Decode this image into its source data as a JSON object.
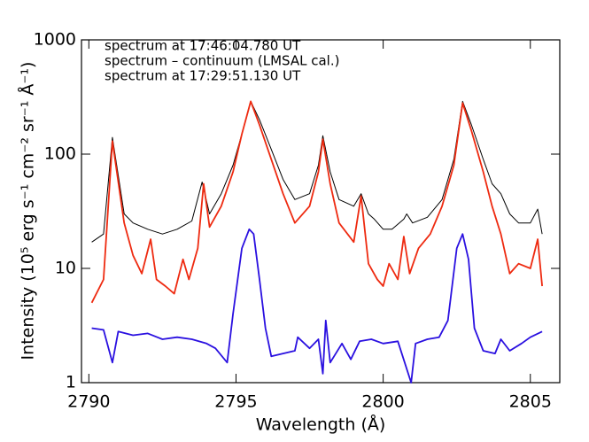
{
  "chart_data": {
    "type": "line",
    "xlabel": "Wavelength (Å)",
    "ylabel": "Intensity (10⁵ erg s⁻¹ cm⁻² sr⁻¹ Å⁻¹)",
    "xlim": [
      2789.75,
      2806
    ],
    "xticks": [
      2790,
      2795,
      2800,
      2805
    ],
    "ylim": [
      1,
      1000
    ],
    "yticks": [
      1,
      10,
      100,
      1000
    ],
    "ylog": true,
    "series": [
      {
        "name": "spectrum at 17:46:04.780 UT",
        "color": "#000000",
        "x": [
          2790.1,
          2790.5,
          2790.8,
          2791.2,
          2791.5,
          2792,
          2792.5,
          2793,
          2793.5,
          2793.85,
          2794.1,
          2794.5,
          2794.9,
          2795.2,
          2795.5,
          2795.8,
          2796.2,
          2796.6,
          2797,
          2797.5,
          2797.8,
          2797.95,
          2798.2,
          2798.5,
          2799,
          2799.25,
          2799.5,
          2799.7,
          2800,
          2800.3,
          2800.7,
          2800.8,
          2801,
          2801.5,
          2802,
          2802.4,
          2802.7,
          2803,
          2803.4,
          2803.7,
          2804,
          2804.3,
          2804.6,
          2805,
          2805.25,
          2805.4
        ],
        "values": [
          17,
          20,
          140,
          30,
          25,
          22,
          20,
          22,
          26,
          57,
          30,
          45,
          80,
          150,
          290,
          200,
          110,
          60,
          40,
          45,
          80,
          145,
          70,
          40,
          35,
          45,
          30,
          27,
          22,
          22,
          27,
          30,
          25,
          28,
          40,
          90,
          290,
          180,
          90,
          55,
          45,
          30,
          25,
          25,
          33,
          20
        ]
      },
      {
        "name": "spectrum – continuum (LMSAL cal.)",
        "color": "#ee2a10",
        "x": [
          2790.1,
          2790.5,
          2790.8,
          2791.2,
          2791.5,
          2791.8,
          2792.1,
          2792.3,
          2792.6,
          2792.9,
          2793.2,
          2793.4,
          2793.7,
          2793.9,
          2794.1,
          2794.5,
          2794.9,
          2795.2,
          2795.5,
          2795.8,
          2796.2,
          2796.6,
          2797,
          2797.5,
          2797.8,
          2797.95,
          2798.2,
          2798.5,
          2799,
          2799.25,
          2799.5,
          2799.8,
          2800,
          2800.2,
          2800.5,
          2800.7,
          2800.9,
          2801.2,
          2801.6,
          2802,
          2802.4,
          2802.7,
          2803,
          2803.4,
          2803.7,
          2804,
          2804.3,
          2804.6,
          2805,
          2805.25,
          2805.4
        ],
        "values": [
          5,
          8,
          130,
          25,
          13,
          9,
          18,
          8,
          7,
          6,
          12,
          8,
          15,
          55,
          23,
          35,
          70,
          150,
          290,
          180,
          90,
          45,
          25,
          35,
          70,
          135,
          55,
          25,
          17,
          43,
          11,
          8,
          7,
          11,
          8,
          19,
          9,
          15,
          20,
          35,
          80,
          280,
          160,
          70,
          35,
          20,
          9,
          11,
          10,
          18,
          7
        ]
      },
      {
        "name": "spectrum at 17:29:51.130 UT",
        "color": "#2a10e0",
        "x": [
          2790.1,
          2790.5,
          2790.8,
          2791,
          2791.5,
          2792,
          2792.5,
          2793,
          2793.5,
          2794,
          2794.3,
          2794.7,
          2794.9,
          2795.2,
          2795.45,
          2795.6,
          2795.8,
          2796,
          2796.2,
          2796.6,
          2797,
          2797.1,
          2797.5,
          2797.8,
          2797.95,
          2798.05,
          2798.2,
          2798.6,
          2798.9,
          2799.2,
          2799.6,
          2800,
          2800.5,
          2800.95,
          2801.1,
          2801.5,
          2801.9,
          2802.2,
          2802.5,
          2802.7,
          2802.9,
          2803.1,
          2803.4,
          2803.8,
          2804,
          2804.3,
          2804.7,
          2805,
          2805.4
        ],
        "values": [
          3,
          2.9,
          1.5,
          2.8,
          2.6,
          2.7,
          2.4,
          2.5,
          2.4,
          2.2,
          2.0,
          1.5,
          4,
          15,
          22,
          20,
          8,
          3,
          1.7,
          1.8,
          1.9,
          2.5,
          2,
          2.4,
          1.2,
          3.5,
          1.5,
          2.2,
          1.6,
          2.3,
          2.4,
          2.2,
          2.3,
          1.0,
          2.2,
          2.4,
          2.5,
          3.5,
          15,
          20,
          12,
          3,
          1.9,
          1.8,
          2.4,
          1.9,
          2.2,
          2.5,
          2.8
        ]
      }
    ]
  }
}
